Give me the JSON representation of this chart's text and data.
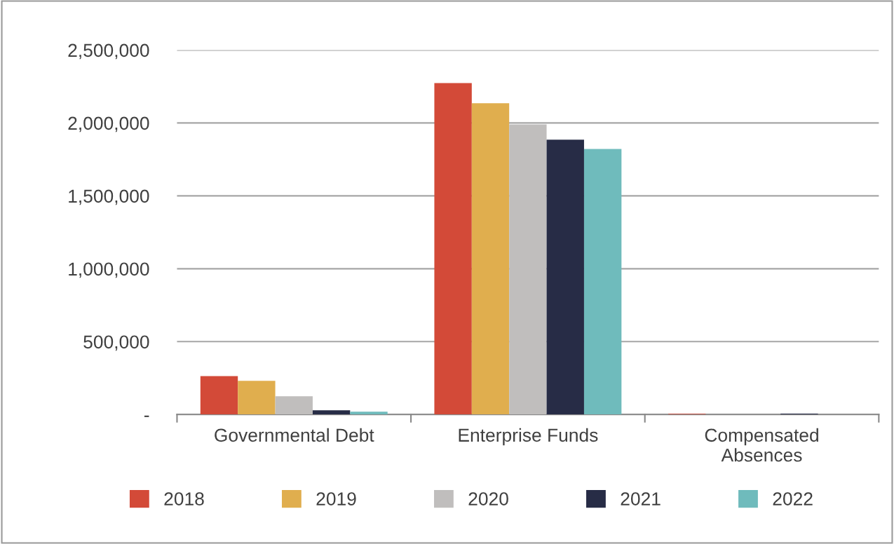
{
  "chart_data": {
    "type": "bar",
    "categories": [
      "Governmental Debt",
      "Enterprise Funds",
      "Compensated\nAbsences"
    ],
    "series": [
      {
        "name": "2018",
        "color": "#d34a38",
        "values": [
          264000,
          2274000,
          5000
        ]
      },
      {
        "name": "2019",
        "color": "#e0ae4e",
        "values": [
          231000,
          2135000,
          null
        ]
      },
      {
        "name": "2020",
        "color": "#c0bebd",
        "values": [
          125000,
          1990000,
          null
        ]
      },
      {
        "name": "2021",
        "color": "#272c46",
        "values": [
          29000,
          1885000,
          6000
        ]
      },
      {
        "name": "2022",
        "color": "#6fbbbc",
        "values": [
          19000,
          1822000,
          null
        ]
      }
    ],
    "ylim": [
      0,
      2500000
    ],
    "yticks": [
      {
        "value": 0,
        "label": "-"
      },
      {
        "value": 500000,
        "label": "500,000"
      },
      {
        "value": 1000000,
        "label": "1,000,000"
      },
      {
        "value": 1500000,
        "label": "1,500,000"
      },
      {
        "value": 2000000,
        "label": "2,000,000"
      },
      {
        "value": 2500000,
        "label": "2,500,000"
      }
    ],
    "grid": "y",
    "legend": "bottom"
  }
}
